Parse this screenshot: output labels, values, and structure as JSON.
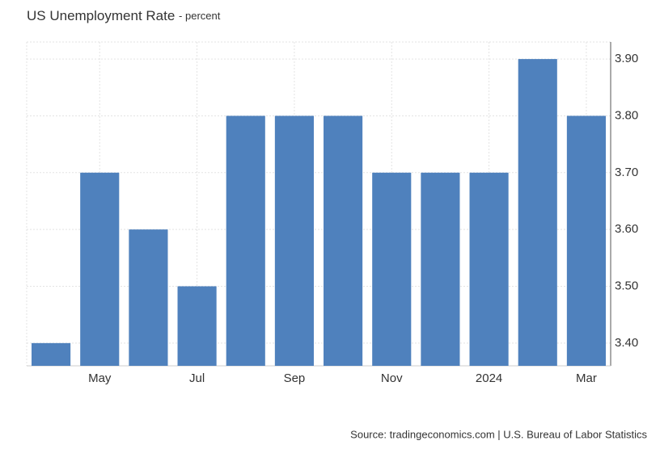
{
  "chart_data": {
    "type": "bar",
    "title": "US Unemployment Rate",
    "subtitle": "- percent",
    "source": "Source: tradingeconomics.com | U.S. Bureau of Labor Statistics",
    "categories": [
      null,
      "May",
      null,
      "Jul",
      null,
      "Sep",
      null,
      "Nov",
      null,
      "2024",
      null,
      "Mar"
    ],
    "values": [
      3.4,
      3.7,
      3.6,
      3.5,
      3.8,
      3.8,
      3.8,
      3.7,
      3.7,
      3.7,
      3.9,
      3.8
    ],
    "color": "#4f81bd",
    "ylim": [
      3.36,
      3.93
    ],
    "yticks": [
      {
        "value": 3.4,
        "label": "3.40"
      },
      {
        "value": 3.5,
        "label": "3.50"
      },
      {
        "value": 3.6,
        "label": "3.60"
      },
      {
        "value": 3.7,
        "label": "3.70"
      },
      {
        "value": 3.8,
        "label": "3.80"
      },
      {
        "value": 3.9,
        "label": "3.90"
      }
    ],
    "grid": true
  }
}
